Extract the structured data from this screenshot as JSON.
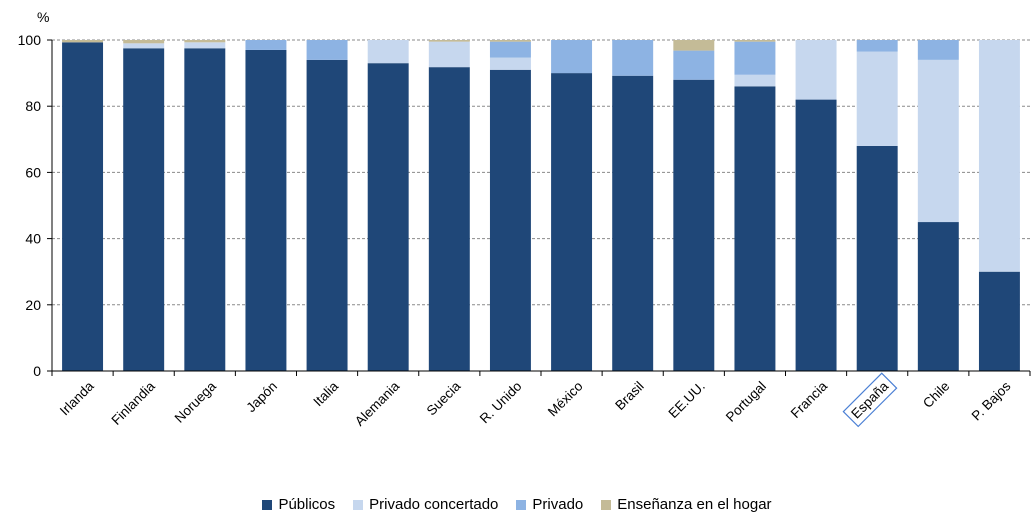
{
  "chart_data": {
    "type": "bar",
    "stacked": true,
    "ylabel": "%",
    "ylim": [
      0,
      100
    ],
    "yticks": [
      0,
      20,
      40,
      60,
      80,
      100
    ],
    "grid": true,
    "legend_position": "bottom",
    "highlighted_category": "España",
    "categories": [
      "Irlanda",
      "Finlandia",
      "Noruega",
      "Japón",
      "Italia",
      "Alemania",
      "Suecia",
      "R. Unido",
      "México",
      "Brasil",
      "EE.UU.",
      "Portugal",
      "Francia",
      "España",
      "Chile",
      "P. Bajos"
    ],
    "series": [
      {
        "name": "Públicos",
        "color": "#1f4778",
        "values": [
          99.3,
          97.5,
          97.5,
          97,
          94,
          93,
          91.8,
          91,
          90,
          89.2,
          88,
          86,
          82,
          68,
          45,
          30
        ]
      },
      {
        "name": "Privado concertado",
        "color": "#c6d7ee",
        "values": [
          0,
          1.5,
          1.8,
          0,
          0,
          7,
          7.7,
          3.7,
          0,
          0,
          0,
          3.5,
          18,
          28.5,
          49,
          70
        ]
      },
      {
        "name": "Privado",
        "color": "#8db3e3",
        "values": [
          0,
          0,
          0,
          3,
          6,
          0,
          0,
          4.8,
          10,
          10.8,
          8.8,
          10,
          0,
          3.5,
          6,
          0
        ]
      },
      {
        "name": "Enseñanza en el hogar",
        "color": "#c4bb97",
        "values": [
          0.7,
          1,
          0.7,
          0,
          0,
          0,
          0.5,
          0.5,
          0,
          0,
          3.2,
          0.5,
          0,
          0,
          0,
          0
        ]
      }
    ]
  }
}
